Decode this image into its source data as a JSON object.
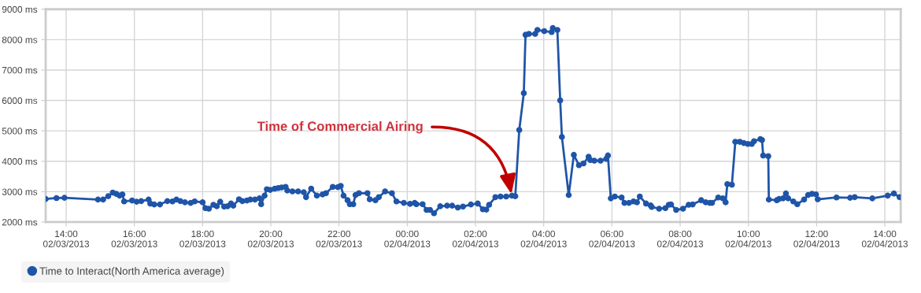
{
  "chart_data": {
    "type": "line",
    "xlim": [
      "2013-02-03T13:24",
      "2013-02-04T14:28"
    ],
    "ylim": [
      2000,
      9000
    ],
    "xticks": [
      {
        "value": "2013-02-03T14:00",
        "label": "14:00\n02/03/2013"
      },
      {
        "value": "2013-02-03T16:00",
        "label": "16:00\n02/03/2013"
      },
      {
        "value": "2013-02-03T18:00",
        "label": "18:00\n02/03/2013"
      },
      {
        "value": "2013-02-03T20:00",
        "label": "20:00\n02/03/2013"
      },
      {
        "value": "2013-02-03T22:00",
        "label": "22:00\n02/03/2013"
      },
      {
        "value": "2013-02-04T00:00",
        "label": "00:00\n02/04/2013"
      },
      {
        "value": "2013-02-04T02:00",
        "label": "02:00\n02/04/2013"
      },
      {
        "value": "2013-02-04T04:00",
        "label": "04:00\n02/04/2013"
      },
      {
        "value": "2013-02-04T06:00",
        "label": "06:00\n02/04/2013"
      },
      {
        "value": "2013-02-04T08:00",
        "label": "08:00\n02/04/2013"
      },
      {
        "value": "2013-02-04T10:00",
        "label": "10:00\n02/04/2013"
      },
      {
        "value": "2013-02-04T12:00",
        "label": "12:00\n02/04/2013"
      },
      {
        "value": "2013-02-04T14:00",
        "label": "14:00\n02/04/2013"
      }
    ],
    "yticks": [
      {
        "value": 2000,
        "label": "2000 ms"
      },
      {
        "value": 3000,
        "label": "3000 ms"
      },
      {
        "value": 4000,
        "label": "4000 ms"
      },
      {
        "value": 5000,
        "label": "5000 ms"
      },
      {
        "value": 6000,
        "label": "6000 ms"
      },
      {
        "value": 7000,
        "label": "7000 ms"
      },
      {
        "value": 8000,
        "label": "8000 ms"
      },
      {
        "value": 9000,
        "label": "9000 ms"
      }
    ],
    "grid": true,
    "legend": "bottom left",
    "marker": "circle",
    "line_style": "solid",
    "annotations": [
      {
        "text": "Time of Commercial Airing",
        "x": "2013-02-04T03:04",
        "y": 2850
      }
    ],
    "series": [
      {
        "name": "Time to Interact(North America average)",
        "color": "#1f55a8",
        "x": [
          "2013-02-03T13:24",
          "2013-02-03T13:43",
          "2013-02-03T13:57",
          "2013-02-03T14:56",
          "2013-02-03T15:05",
          "2013-02-03T15:14",
          "2013-02-03T15:22",
          "2013-02-03T15:28",
          "2013-02-03T15:34",
          "2013-02-03T15:39",
          "2013-02-03T15:42",
          "2013-02-03T15:56",
          "2013-02-03T16:04",
          "2013-02-03T16:12",
          "2013-02-03T16:25",
          "2013-02-03T16:28",
          "2013-02-03T16:35",
          "2013-02-03T16:45",
          "2013-02-03T16:58",
          "2013-02-03T17:07",
          "2013-02-03T17:14",
          "2013-02-03T17:21",
          "2013-02-03T17:29",
          "2013-02-03T17:39",
          "2013-02-03T17:46",
          "2013-02-03T18:00",
          "2013-02-03T18:05",
          "2013-02-03T18:11",
          "2013-02-03T18:19",
          "2013-02-03T18:25",
          "2013-02-03T18:31",
          "2013-02-03T18:38",
          "2013-02-03T18:44",
          "2013-02-03T18:50",
          "2013-02-03T18:54",
          "2013-02-03T19:04",
          "2013-02-03T19:10",
          "2013-02-03T19:18",
          "2013-02-03T19:24",
          "2013-02-03T19:32",
          "2013-02-03T19:40",
          "2013-02-03T19:43",
          "2013-02-03T19:49",
          "2013-02-03T19:53",
          "2013-02-03T19:59",
          "2013-02-03T20:07",
          "2013-02-03T20:13",
          "2013-02-03T20:19",
          "2013-02-03T20:26",
          "2013-02-03T20:29",
          "2013-02-03T20:38",
          "2013-02-03T20:48",
          "2013-02-03T20:58",
          "2013-02-03T21:02",
          "2013-02-03T21:11",
          "2013-02-03T21:21",
          "2013-02-03T21:31",
          "2013-02-03T21:37",
          "2013-02-03T21:49",
          "2013-02-03T21:58",
          "2013-02-03T22:03",
          "2013-02-03T22:08",
          "2013-02-03T22:15",
          "2013-02-03T22:19",
          "2013-02-03T22:25",
          "2013-02-03T22:29",
          "2013-02-03T22:35",
          "2013-02-03T22:50",
          "2013-02-03T22:54",
          "2013-02-03T23:04",
          "2013-02-03T23:10",
          "2013-02-03T23:21",
          "2013-02-03T23:33",
          "2013-02-03T23:41",
          "2013-02-03T23:54",
          "2013-02-04T00:05",
          "2013-02-04T00:13",
          "2013-02-04T00:16",
          "2013-02-04T00:27",
          "2013-02-04T00:34",
          "2013-02-04T00:40",
          "2013-02-04T00:47",
          "2013-02-04T00:58",
          "2013-02-04T01:10",
          "2013-02-04T01:19",
          "2013-02-04T01:29",
          "2013-02-04T01:38",
          "2013-02-04T01:52",
          "2013-02-04T02:04",
          "2013-02-04T02:13",
          "2013-02-04T02:19",
          "2013-02-04T02:24",
          "2013-02-04T02:35",
          "2013-02-04T02:44",
          "2013-02-04T02:54",
          "2013-02-04T03:04",
          "2013-02-04T03:10",
          "2013-02-04T03:17",
          "2013-02-04T03:25",
          "2013-02-04T03:28",
          "2013-02-04T03:34",
          "2013-02-04T03:45",
          "2013-02-04T03:49",
          "2013-02-04T04:01",
          "2013-02-04T04:14",
          "2013-02-04T04:16",
          "2013-02-04T04:24",
          "2013-02-04T04:29",
          "2013-02-04T04:32",
          "2013-02-04T04:44",
          "2013-02-04T04:53",
          "2013-02-04T05:02",
          "2013-02-04T05:10",
          "2013-02-04T05:19",
          "2013-02-04T05:22",
          "2013-02-04T05:29",
          "2013-02-04T05:40",
          "2013-02-04T05:50",
          "2013-02-04T05:53",
          "2013-02-04T05:58",
          "2013-02-04T06:05",
          "2013-02-04T06:17",
          "2013-02-04T06:22",
          "2013-02-04T06:30",
          "2013-02-04T06:38",
          "2013-02-04T06:44",
          "2013-02-04T06:49",
          "2013-02-04T07:00",
          "2013-02-04T07:08",
          "2013-02-04T07:10",
          "2013-02-04T07:23",
          "2013-02-04T07:34",
          "2013-02-04T07:40",
          "2013-02-04T07:44",
          "2013-02-04T07:53",
          "2013-02-04T08:05",
          "2013-02-04T08:15",
          "2013-02-04T08:22",
          "2013-02-04T08:37",
          "2013-02-04T08:45",
          "2013-02-04T08:52",
          "2013-02-04T08:56",
          "2013-02-04T09:07",
          "2013-02-04T09:15",
          "2013-02-04T09:20",
          "2013-02-04T09:23",
          "2013-02-04T09:31",
          "2013-02-04T09:37",
          "2013-02-04T09:45",
          "2013-02-04T09:52",
          "2013-02-04T09:59",
          "2013-02-04T10:06",
          "2013-02-04T10:10",
          "2013-02-04T10:21",
          "2013-02-04T10:24",
          "2013-02-04T10:26",
          "2013-02-04T10:35",
          "2013-02-04T10:36",
          "2013-02-04T10:50",
          "2013-02-04T10:54",
          "2013-02-04T11:01",
          "2013-02-04T11:06",
          "2013-02-04T11:10",
          "2013-02-04T11:19",
          "2013-02-04T11:26",
          "2013-02-04T11:38",
          "2013-02-04T11:45",
          "2013-02-04T11:52",
          "2013-02-04T11:59",
          "2013-02-04T12:02",
          "2013-02-04T12:35",
          "2013-02-04T12:59",
          "2013-02-04T13:07",
          "2013-02-04T13:38",
          "2013-02-04T14:05",
          "2013-02-04T14:16",
          "2013-02-04T14:26"
        ],
        "values": [
          2760,
          2790,
          2800,
          2740,
          2740,
          2850,
          2970,
          2930,
          2870,
          2910,
          2680,
          2710,
          2670,
          2690,
          2740,
          2610,
          2580,
          2580,
          2690,
          2680,
          2740,
          2690,
          2650,
          2630,
          2680,
          2650,
          2460,
          2440,
          2570,
          2520,
          2670,
          2510,
          2520,
          2610,
          2540,
          2750,
          2690,
          2710,
          2740,
          2740,
          2780,
          2590,
          2870,
          3080,
          3060,
          3100,
          3120,
          3140,
          3160,
          3040,
          3010,
          3010,
          2980,
          2820,
          3100,
          2870,
          2910,
          2950,
          3160,
          3150,
          3190,
          2870,
          2720,
          2590,
          2590,
          2890,
          2950,
          2950,
          2750,
          2720,
          2820,
          3010,
          2950,
          2680,
          2630,
          2600,
          2630,
          2590,
          2590,
          2400,
          2400,
          2290,
          2520,
          2540,
          2540,
          2480,
          2510,
          2580,
          2610,
          2420,
          2410,
          2570,
          2820,
          2840,
          2840,
          2870,
          2850,
          5030,
          6240,
          8160,
          8190,
          8190,
          8320,
          8280,
          8250,
          8380,
          8320,
          6000,
          4800,
          2890,
          4210,
          3870,
          3930,
          4150,
          4040,
          4020,
          4020,
          4080,
          4190,
          2780,
          2840,
          2810,
          2630,
          2630,
          2680,
          2650,
          2840,
          2610,
          2550,
          2500,
          2440,
          2460,
          2570,
          2580,
          2400,
          2440,
          2570,
          2580,
          2720,
          2650,
          2630,
          2630,
          2810,
          2780,
          2650,
          3250,
          3230,
          4640,
          4640,
          4600,
          4570,
          4570,
          4660,
          4730,
          4700,
          4190,
          4170,
          2740,
          2720,
          2760,
          2780,
          2940,
          2780,
          2680,
          2590,
          2740,
          2890,
          2930,
          2910,
          2750,
          2810,
          2800,
          2820,
          2780,
          2870,
          2940,
          2820
        ]
      }
    ]
  }
}
